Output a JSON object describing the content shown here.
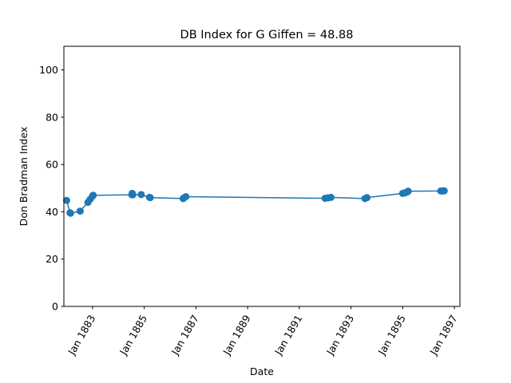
{
  "chart_data": {
    "type": "line",
    "title": "DB Index for G Giffen = 48.88",
    "xlabel": "Date",
    "ylabel": "Don Bradman Index",
    "ylim": [
      0,
      110
    ],
    "xlim": [
      "1881-11-22",
      "1897-03-20"
    ],
    "grid": false,
    "legend": "none",
    "color": "#1f77b4",
    "x_ticks": [
      {
        "date": "1883-01-01",
        "label": "Jan 1883"
      },
      {
        "date": "1885-01-01",
        "label": "Jan 1885"
      },
      {
        "date": "1887-01-01",
        "label": "Jan 1887"
      },
      {
        "date": "1889-01-01",
        "label": "Jan 1889"
      },
      {
        "date": "1891-01-01",
        "label": "Jan 1891"
      },
      {
        "date": "1893-01-01",
        "label": "Jan 1893"
      },
      {
        "date": "1895-01-01",
        "label": "Jan 1895"
      },
      {
        "date": "1897-01-01",
        "label": "Jan 1897"
      }
    ],
    "y_ticks": [
      0,
      20,
      40,
      60,
      80,
      100
    ],
    "series": [
      {
        "points": [
          {
            "x": "1881-12-31",
            "y": 44.8
          },
          {
            "x": "1882-02-17",
            "y": 39.6
          },
          {
            "x": "1882-02-24",
            "y": 39.4
          },
          {
            "x": "1882-07-10",
            "y": 40.3
          },
          {
            "x": "1882-10-28",
            "y": 44.0
          },
          {
            "x": "1882-11-28",
            "y": 45.3
          },
          {
            "x": "1882-12-31",
            "y": 46.6
          },
          {
            "x": "1883-01-10",
            "y": 47.0
          },
          {
            "x": "1884-07-10",
            "y": 47.2
          },
          {
            "x": "1884-07-15",
            "y": 47.8
          },
          {
            "x": "1884-07-24",
            "y": 47.2
          },
          {
            "x": "1884-11-19",
            "y": 47.3
          },
          {
            "x": "1885-03-16",
            "y": 46.1
          },
          {
            "x": "1885-03-26",
            "y": 46.0
          },
          {
            "x": "1886-07-05",
            "y": 45.6
          },
          {
            "x": "1886-07-15",
            "y": 45.9
          },
          {
            "x": "1886-08-12",
            "y": 46.4
          },
          {
            "x": "1892-01-01",
            "y": 45.7
          },
          {
            "x": "1892-02-12",
            "y": 45.9
          },
          {
            "x": "1892-03-24",
            "y": 46.1
          },
          {
            "x": "1893-07-17",
            "y": 45.6
          },
          {
            "x": "1893-08-14",
            "y": 46.0
          },
          {
            "x": "1895-01-01",
            "y": 47.8
          },
          {
            "x": "1895-02-01",
            "y": 48.0
          },
          {
            "x": "1895-03-01",
            "y": 48.3
          },
          {
            "x": "1895-03-20",
            "y": 48.7
          },
          {
            "x": "1896-06-22",
            "y": 48.8
          },
          {
            "x": "1896-07-16",
            "y": 48.8
          },
          {
            "x": "1896-08-10",
            "y": 48.88
          }
        ]
      }
    ]
  }
}
